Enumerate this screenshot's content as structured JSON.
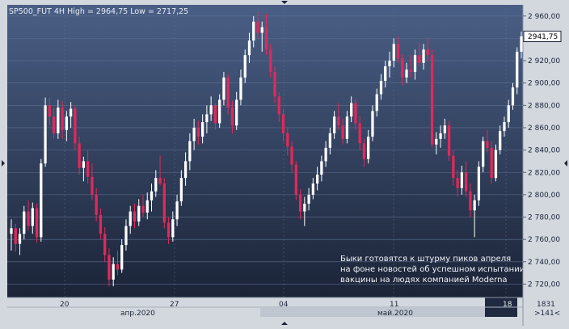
{
  "header": {
    "title": "SP500_FUT 4H High = 2964,75 Low = 2717,25"
  },
  "annotation": {
    "lines": [
      "Быки готовятся к штурму пиков апреля",
      "на фоне новостей об успешном испытании",
      "вакцины на людях компанией Moderna"
    ]
  },
  "price_label": "2941,75",
  "x_axis": {
    "day_labels": [
      "20",
      "27",
      "04",
      "11",
      "18"
    ],
    "month_labels": [
      "апр.2020",
      "май.2020"
    ]
  },
  "corner": {
    "bars_count": "1831",
    "offset": ">141<"
  },
  "colors": {
    "background_top": "#4a5f86",
    "background_bottom": "#1b2437",
    "bull_candle": "#ffffff",
    "bear_candle": "#e3285a",
    "grid": "#5d6f90",
    "axis_panel": "#d3d8df"
  },
  "chart_data": {
    "type": "candlestick",
    "title": "SP500_FUT 4H High = 2964,75 Low = 2717,25",
    "ylim": [
      2708,
      2970
    ],
    "y_ticks": [
      2720,
      2740,
      2760,
      2780,
      2800,
      2820,
      2840,
      2860,
      2880,
      2900,
      2920,
      2940,
      2960
    ],
    "y_tick_labels": [
      "2 720,00",
      "2 740,00",
      "2 760,00",
      "2 780,00",
      "2 800,00",
      "2 820,00",
      "2 840,00",
      "2 860,00",
      "2 880,00",
      "2 900,00",
      "2 920,00",
      "2 940,00",
      "2 960,00"
    ],
    "last_price": 2941.75,
    "grid": true,
    "ohlc": [
      [
        2765,
        2778,
        2750,
        2770
      ],
      [
        2770,
        2774,
        2749,
        2756
      ],
      [
        2756,
        2770,
        2746,
        2765
      ],
      [
        2765,
        2790,
        2760,
        2785
      ],
      [
        2785,
        2795,
        2768,
        2772
      ],
      [
        2772,
        2793,
        2765,
        2788
      ],
      [
        2788,
        2792,
        2757,
        2762
      ],
      [
        2762,
        2832,
        2758,
        2828
      ],
      [
        2828,
        2887,
        2825,
        2880
      ],
      [
        2880,
        2887,
        2862,
        2870
      ],
      [
        2870,
        2878,
        2850,
        2855
      ],
      [
        2855,
        2885,
        2850,
        2878
      ],
      [
        2878,
        2884,
        2850,
        2858
      ],
      [
        2858,
        2875,
        2848,
        2870
      ],
      [
        2870,
        2883,
        2860,
        2877
      ],
      [
        2877,
        2880,
        2840,
        2846
      ],
      [
        2846,
        2852,
        2818,
        2824
      ],
      [
        2824,
        2834,
        2812,
        2830
      ],
      [
        2830,
        2840,
        2810,
        2816
      ],
      [
        2816,
        2828,
        2795,
        2800
      ],
      [
        2800,
        2806,
        2776,
        2782
      ],
      [
        2782,
        2788,
        2760,
        2765
      ],
      [
        2765,
        2771,
        2740,
        2746
      ],
      [
        2746,
        2752,
        2718,
        2724
      ],
      [
        2724,
        2744,
        2718,
        2738
      ],
      [
        2738,
        2750,
        2728,
        2733
      ],
      [
        2733,
        2760,
        2730,
        2755
      ],
      [
        2755,
        2778,
        2750,
        2772
      ],
      [
        2772,
        2790,
        2765,
        2785
      ],
      [
        2785,
        2792,
        2770,
        2776
      ],
      [
        2776,
        2796,
        2772,
        2790
      ],
      [
        2790,
        2800,
        2780,
        2784
      ],
      [
        2784,
        2802,
        2778,
        2795
      ],
      [
        2795,
        2810,
        2785,
        2803
      ],
      [
        2803,
        2822,
        2798,
        2815
      ],
      [
        2815,
        2835,
        2808,
        2810
      ],
      [
        2810,
        2815,
        2770,
        2775
      ],
      [
        2775,
        2780,
        2756,
        2762
      ],
      [
        2762,
        2785,
        2758,
        2778
      ],
      [
        2778,
        2800,
        2772,
        2794
      ],
      [
        2794,
        2822,
        2790,
        2815
      ],
      [
        2815,
        2838,
        2808,
        2830
      ],
      [
        2830,
        2855,
        2822,
        2848
      ],
      [
        2848,
        2868,
        2840,
        2860
      ],
      [
        2860,
        2866,
        2845,
        2852
      ],
      [
        2852,
        2872,
        2846,
        2865
      ],
      [
        2865,
        2880,
        2855,
        2872
      ],
      [
        2872,
        2888,
        2866,
        2880
      ],
      [
        2880,
        2882,
        2858,
        2864
      ],
      [
        2864,
        2890,
        2860,
        2885
      ],
      [
        2885,
        2910,
        2880,
        2905
      ],
      [
        2905,
        2908,
        2872,
        2878
      ],
      [
        2878,
        2884,
        2855,
        2862
      ],
      [
        2862,
        2892,
        2858,
        2885
      ],
      [
        2885,
        2912,
        2880,
        2905
      ],
      [
        2905,
        2930,
        2900,
        2925
      ],
      [
        2925,
        2945,
        2918,
        2938
      ],
      [
        2938,
        2960,
        2932,
        2955
      ],
      [
        2955,
        2964,
        2940,
        2945
      ],
      [
        2945,
        2955,
        2928,
        2950
      ],
      [
        2950,
        2962,
        2925,
        2930
      ],
      [
        2930,
        2935,
        2905,
        2910
      ],
      [
        2910,
        2915,
        2882,
        2888
      ],
      [
        2888,
        2892,
        2865,
        2872
      ],
      [
        2872,
        2877,
        2848,
        2855
      ],
      [
        2855,
        2860,
        2835,
        2843
      ],
      [
        2843,
        2848,
        2820,
        2827
      ],
      [
        2827,
        2830,
        2795,
        2800
      ],
      [
        2800,
        2805,
        2778,
        2785
      ],
      [
        2785,
        2798,
        2772,
        2792
      ],
      [
        2792,
        2806,
        2786,
        2800
      ],
      [
        2800,
        2815,
        2796,
        2810
      ],
      [
        2810,
        2825,
        2804,
        2818
      ],
      [
        2818,
        2835,
        2812,
        2830
      ],
      [
        2830,
        2848,
        2825,
        2842
      ],
      [
        2842,
        2860,
        2836,
        2855
      ],
      [
        2855,
        2875,
        2850,
        2870
      ],
      [
        2870,
        2882,
        2858,
        2862
      ],
      [
        2862,
        2868,
        2845,
        2850
      ],
      [
        2850,
        2875,
        2846,
        2870
      ],
      [
        2870,
        2888,
        2865,
        2882
      ],
      [
        2882,
        2886,
        2858,
        2864
      ],
      [
        2864,
        2870,
        2840,
        2846
      ],
      [
        2846,
        2850,
        2825,
        2832
      ],
      [
        2832,
        2858,
        2828,
        2852
      ],
      [
        2852,
        2880,
        2848,
        2875
      ],
      [
        2875,
        2895,
        2870,
        2890
      ],
      [
        2890,
        2908,
        2885,
        2902
      ],
      [
        2902,
        2920,
        2896,
        2915
      ],
      [
        2915,
        2928,
        2905,
        2920
      ],
      [
        2920,
        2940,
        2914,
        2935
      ],
      [
        2935,
        2942,
        2918,
        2922
      ],
      [
        2922,
        2926,
        2898,
        2905
      ],
      [
        2905,
        2918,
        2900,
        2912
      ],
      [
        2912,
        2925,
        2905,
        2910
      ],
      [
        2910,
        2930,
        2903,
        2925
      ],
      [
        2925,
        2936,
        2915,
        2918
      ],
      [
        2918,
        2935,
        2912,
        2930
      ],
      [
        2930,
        2940,
        2920,
        2925
      ],
      [
        2925,
        2930,
        2842,
        2845
      ],
      [
        2845,
        2856,
        2836,
        2850
      ],
      [
        2850,
        2862,
        2842,
        2855
      ],
      [
        2855,
        2868,
        2850,
        2862
      ],
      [
        2862,
        2866,
        2830,
        2835
      ],
      [
        2835,
        2840,
        2808,
        2815
      ],
      [
        2815,
        2822,
        2798,
        2806
      ],
      [
        2806,
        2826,
        2800,
        2820
      ],
      [
        2820,
        2830,
        2798,
        2803
      ],
      [
        2803,
        2810,
        2780,
        2786
      ],
      [
        2786,
        2800,
        2762,
        2795
      ],
      [
        2795,
        2830,
        2790,
        2825
      ],
      [
        2825,
        2852,
        2820,
        2848
      ],
      [
        2848,
        2858,
        2838,
        2842
      ],
      [
        2842,
        2848,
        2810,
        2815
      ],
      [
        2815,
        2845,
        2812,
        2840
      ],
      [
        2840,
        2862,
        2836,
        2857
      ],
      [
        2857,
        2870,
        2852,
        2865
      ],
      [
        2865,
        2885,
        2860,
        2880
      ],
      [
        2880,
        2900,
        2876,
        2896
      ],
      [
        2896,
        2932,
        2890,
        2928
      ],
      [
        2928,
        2946,
        2922,
        2941.75
      ]
    ]
  }
}
